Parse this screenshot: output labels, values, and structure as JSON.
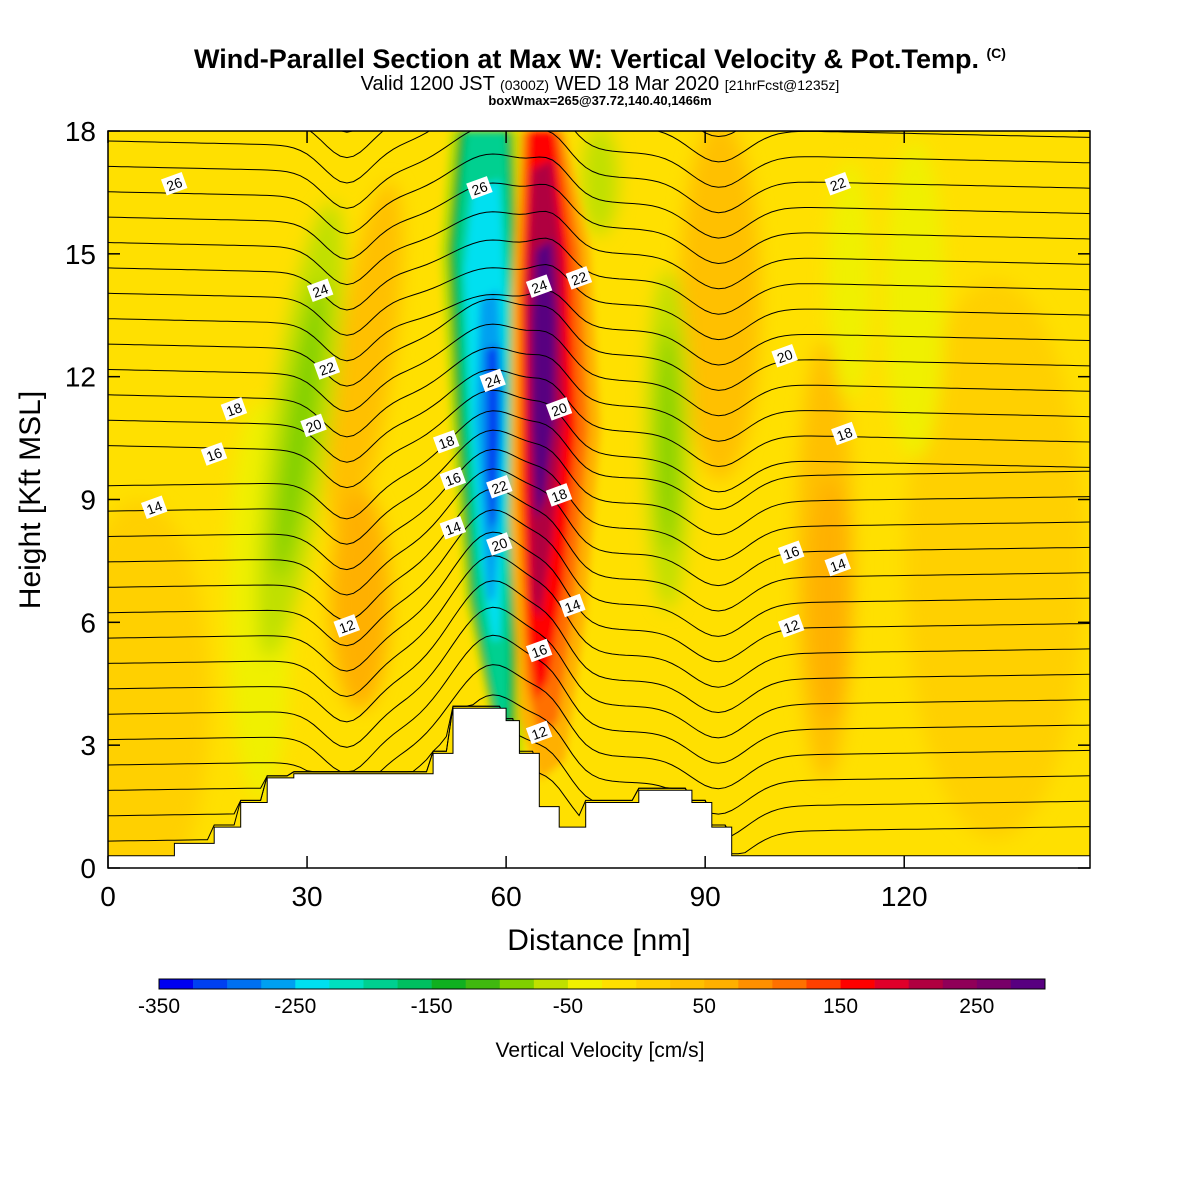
{
  "header": {
    "title": "Wind-Parallel Section at Max W: Vertical Velocity & Pot.Temp.",
    "copyright_mark": "(C)",
    "valid_prefix": "Valid 1200 JST",
    "valid_utc": "(0300Z)",
    "valid_date": "WED 18 Mar 2020",
    "forecast_info": "[21hrFcst@1235z]",
    "box_info": "boxWmax=265@37.72,140.40,1466m"
  },
  "chart_data": {
    "type": "heatmap",
    "title": "Wind-Parallel Section at Max W: Vertical Velocity & Pot.Temp.",
    "xlabel": "Distance [nm]",
    "ylabel": "Height [Kft MSL]",
    "xlim": [
      0,
      148
    ],
    "ylim": [
      0,
      18
    ],
    "x_ticks": [
      0,
      30,
      60,
      90,
      120
    ],
    "y_ticks": [
      0,
      3,
      6,
      9,
      12,
      15,
      18
    ],
    "colorbar": {
      "label": "Vertical Velocity [cm/s]",
      "tick_labels": [
        "-350",
        "-250",
        "-150",
        "-50",
        "50",
        "150",
        "250"
      ],
      "tick_values": [
        -350,
        -250,
        -150,
        -50,
        50,
        150,
        250
      ],
      "levels": [
        -350,
        -325,
        -300,
        -275,
        -250,
        -225,
        -200,
        -175,
        -150,
        -125,
        -100,
        -75,
        -50,
        -25,
        0,
        25,
        50,
        75,
        100,
        125,
        150,
        175,
        200,
        225,
        250,
        275
      ],
      "colors": [
        "#0000f0",
        "#0040f0",
        "#0070f0",
        "#00a0f0",
        "#00e0f0",
        "#00e0c0",
        "#00d090",
        "#00c060",
        "#10b020",
        "#40b810",
        "#80d000",
        "#c0e000",
        "#f0f000",
        "#ffe000",
        "#ffd000",
        "#ffc000",
        "#ffb000",
        "#ff9000",
        "#ff7000",
        "#ff4000",
        "#ff0000",
        "#e0002a",
        "#b00040",
        "#900058",
        "#780068",
        "#580080"
      ]
    },
    "features": [
      {
        "name": "downdraft",
        "x": 58,
        "y_range": [
          3.5,
          18
        ],
        "min_w": -330
      },
      {
        "name": "updraft",
        "x": 65,
        "y_range": [
          3.5,
          18
        ],
        "max_w": 265
      }
    ],
    "terrain": {
      "x": [
        0,
        10,
        10,
        16,
        16,
        20,
        20,
        24,
        24,
        28,
        28,
        49,
        49,
        52,
        52,
        60,
        60,
        62,
        62,
        65,
        65,
        68,
        68,
        72,
        72,
        80,
        80,
        88,
        88,
        91,
        91,
        94,
        94,
        148
      ],
      "height": [
        0.3,
        0.3,
        0.6,
        0.6,
        1.0,
        1.0,
        1.6,
        1.6,
        2.2,
        2.2,
        2.3,
        2.3,
        2.8,
        2.8,
        3.9,
        3.9,
        3.6,
        3.6,
        2.8,
        2.8,
        1.5,
        1.5,
        1.0,
        1.0,
        1.6,
        1.6,
        1.9,
        1.9,
        1.6,
        1.6,
        1.0,
        1.0,
        0.3,
        0.3
      ]
    },
    "theta_contour_labels": [
      {
        "text": "26",
        "x": 10,
        "y": 16.7
      },
      {
        "text": "26",
        "x": 56,
        "y": 16.6
      },
      {
        "text": "24",
        "x": 32,
        "y": 14.1
      },
      {
        "text": "24",
        "x": 65,
        "y": 14.2
      },
      {
        "text": "22",
        "x": 71,
        "y": 14.4
      },
      {
        "text": "22",
        "x": 33,
        "y": 12.2
      },
      {
        "text": "24",
        "x": 58,
        "y": 11.9
      },
      {
        "text": "20",
        "x": 102,
        "y": 12.5
      },
      {
        "text": "22",
        "x": 110,
        "y": 16.7
      },
      {
        "text": "18",
        "x": 19,
        "y": 11.2
      },
      {
        "text": "20",
        "x": 31,
        "y": 10.8
      },
      {
        "text": "20",
        "x": 68,
        "y": 11.2
      },
      {
        "text": "18",
        "x": 51,
        "y": 10.4
      },
      {
        "text": "18",
        "x": 111,
        "y": 10.6
      },
      {
        "text": "16",
        "x": 16,
        "y": 10.1
      },
      {
        "text": "16",
        "x": 52,
        "y": 9.5
      },
      {
        "text": "22",
        "x": 59,
        "y": 9.3
      },
      {
        "text": "18",
        "x": 68,
        "y": 9.1
      },
      {
        "text": "14",
        "x": 7,
        "y": 8.8
      },
      {
        "text": "14",
        "x": 52,
        "y": 8.3
      },
      {
        "text": "20",
        "x": 59,
        "y": 7.9
      },
      {
        "text": "16",
        "x": 103,
        "y": 7.7
      },
      {
        "text": "14",
        "x": 110,
        "y": 7.4
      },
      {
        "text": "14",
        "x": 70,
        "y": 6.4
      },
      {
        "text": "12",
        "x": 36,
        "y": 5.9
      },
      {
        "text": "12",
        "x": 103,
        "y": 5.9
      },
      {
        "text": "16",
        "x": 65,
        "y": 5.3
      },
      {
        "text": "12",
        "x": 65,
        "y": 3.3
      }
    ]
  }
}
